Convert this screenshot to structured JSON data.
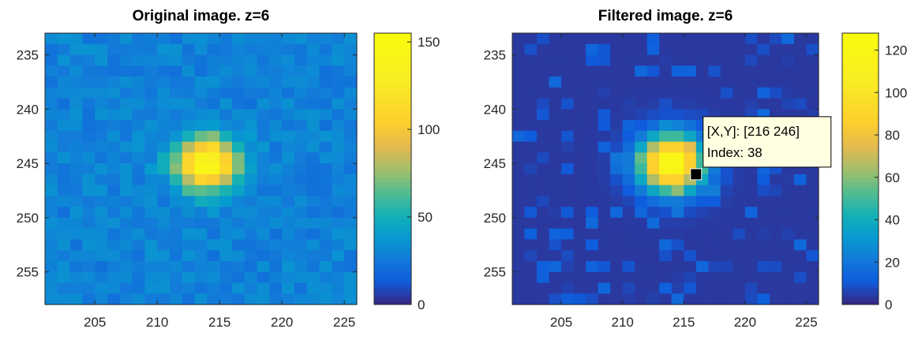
{
  "chart_data": [
    {
      "type": "heatmap",
      "title": "Original image. z=6",
      "xlim": [
        201,
        226
      ],
      "ylim": [
        233,
        258
      ],
      "y_reversed": true,
      "x_ticks": [
        "205",
        "210",
        "215",
        "220",
        "225"
      ],
      "y_ticks": [
        "235",
        "240",
        "245",
        "250",
        "255"
      ],
      "colormap": "parula",
      "clim": [
        0,
        155
      ],
      "colorbar_ticks": [
        "0",
        "50",
        "100",
        "150"
      ],
      "peak": {
        "x": 214,
        "y": 245,
        "value": 150
      },
      "peak_sigma": 1.7,
      "background": 28
    },
    {
      "type": "heatmap",
      "title": "Filtered image. z=6",
      "xlim": [
        201,
        226
      ],
      "ylim": [
        233,
        258
      ],
      "y_reversed": true,
      "x_ticks": [
        "205",
        "210",
        "215",
        "220",
        "225"
      ],
      "y_ticks": [
        "235",
        "240",
        "245",
        "250",
        "255"
      ],
      "colormap": "parula",
      "clim": [
        0,
        128
      ],
      "colorbar_ticks": [
        "0",
        "20",
        "40",
        "60",
        "80",
        "100",
        "120"
      ],
      "peak": {
        "x": 214,
        "y": 245,
        "value": 128
      },
      "peak_sigma": 1.8,
      "background": 3,
      "datatip": {
        "x": 216,
        "y": 246,
        "line1": "[X,Y]: [216 246]",
        "line2": "Index: 38"
      }
    }
  ]
}
